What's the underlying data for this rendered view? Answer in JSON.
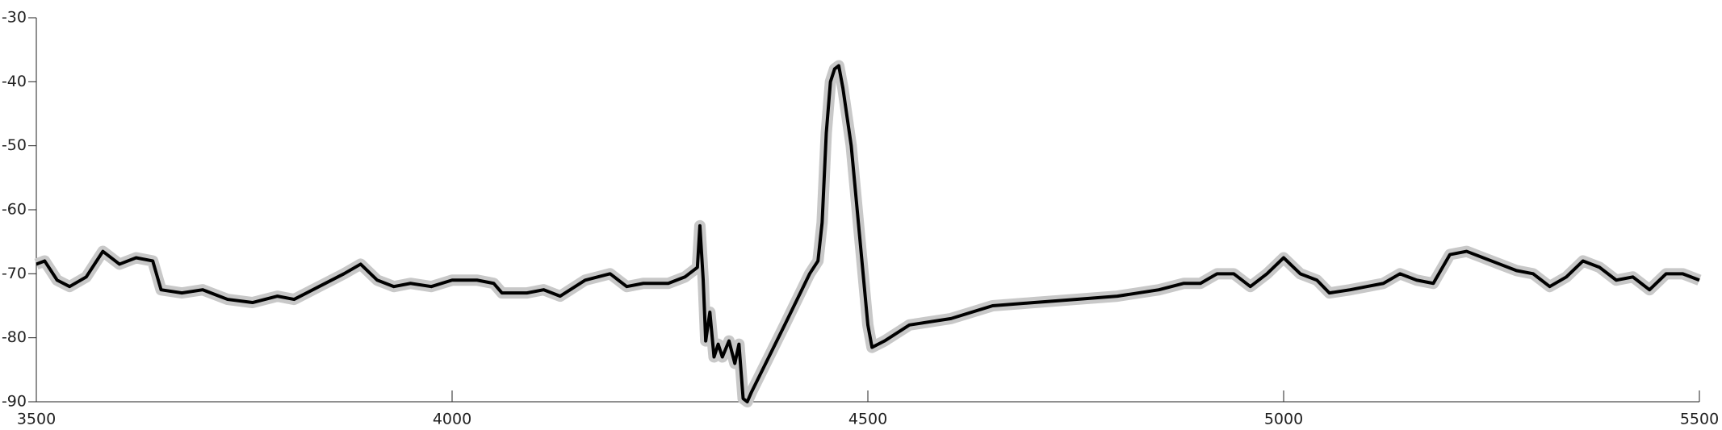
{
  "chart_data": {
    "type": "line",
    "xlim": [
      3500,
      5500
    ],
    "xticks": [
      3500,
      4000,
      4500,
      5000,
      5500
    ],
    "ylim": [
      -90,
      -30
    ],
    "yticks": [
      -90,
      -80,
      -70,
      -60,
      -50,
      -40,
      -30
    ],
    "band_color": "#c8c8c8",
    "x": [
      3500,
      3510,
      3525,
      3540,
      3560,
      3580,
      3600,
      3620,
      3640,
      3650,
      3675,
      3700,
      3720,
      3730,
      3760,
      3790,
      3810,
      3840,
      3870,
      3890,
      3910,
      3930,
      3950,
      3975,
      4000,
      4030,
      4050,
      4060,
      4090,
      4110,
      4130,
      4160,
      4190,
      4210,
      4230,
      4260,
      4280,
      4295,
      4298,
      4302,
      4305,
      4310,
      4315,
      4320,
      4325,
      4333,
      4340,
      4345,
      4350,
      4355,
      4360,
      4400,
      4430,
      4440,
      4445,
      4450,
      4455,
      4460,
      4465,
      4470,
      4480,
      4490,
      4500,
      4505,
      4520,
      4550,
      4600,
      4650,
      4700,
      4750,
      4800,
      4850,
      4880,
      4900,
      4920,
      4940,
      4960,
      4980,
      5000,
      5020,
      5040,
      5055,
      5080,
      5100,
      5120,
      5140,
      5160,
      5180,
      5200,
      5220,
      5240,
      5260,
      5280,
      5300,
      5320,
      5340,
      5360,
      5380,
      5400,
      5420,
      5440,
      5460,
      5480,
      5500
    ],
    "series": [
      {
        "color": "#000000",
        "values": [
          -68.5,
          -68,
          -71,
          -72,
          -70.5,
          -66.5,
          -68.5,
          -67.5,
          -68,
          -72.5,
          -73,
          -72.5,
          -73.5,
          -74,
          -74.5,
          -73.5,
          -74,
          -72,
          -70,
          -68.5,
          -71,
          -72,
          -71.5,
          -72,
          -71,
          -71,
          -71.5,
          -73,
          -73,
          -72.5,
          -73.5,
          -71,
          -70,
          -72,
          -71.5,
          -71.5,
          -70.5,
          -69,
          -62.5,
          -71,
          -80.5,
          -76,
          -83,
          -81,
          -83,
          -80.5,
          -84,
          -81,
          -89.5,
          -90,
          -88.5,
          -78,
          -70,
          -68,
          -62,
          -48,
          -40,
          -38,
          -37.5,
          -41,
          -50,
          -64,
          -78,
          -81.5,
          -80.5,
          -78,
          -77,
          -75,
          -74.5,
          -74,
          -73.5,
          -72.5,
          -71.5,
          -71.5,
          -70,
          -70,
          -72,
          -70,
          -67.5,
          -70,
          -71,
          -73,
          -72.5,
          -72,
          -71.5,
          -70,
          -71,
          -71.5,
          -67,
          -66.5,
          -67.5,
          -68.5,
          -69.5,
          -70,
          -72,
          -70.5,
          -68,
          -69,
          -71,
          -70.5,
          -72.5,
          -70,
          -70,
          -71
        ]
      }
    ]
  }
}
